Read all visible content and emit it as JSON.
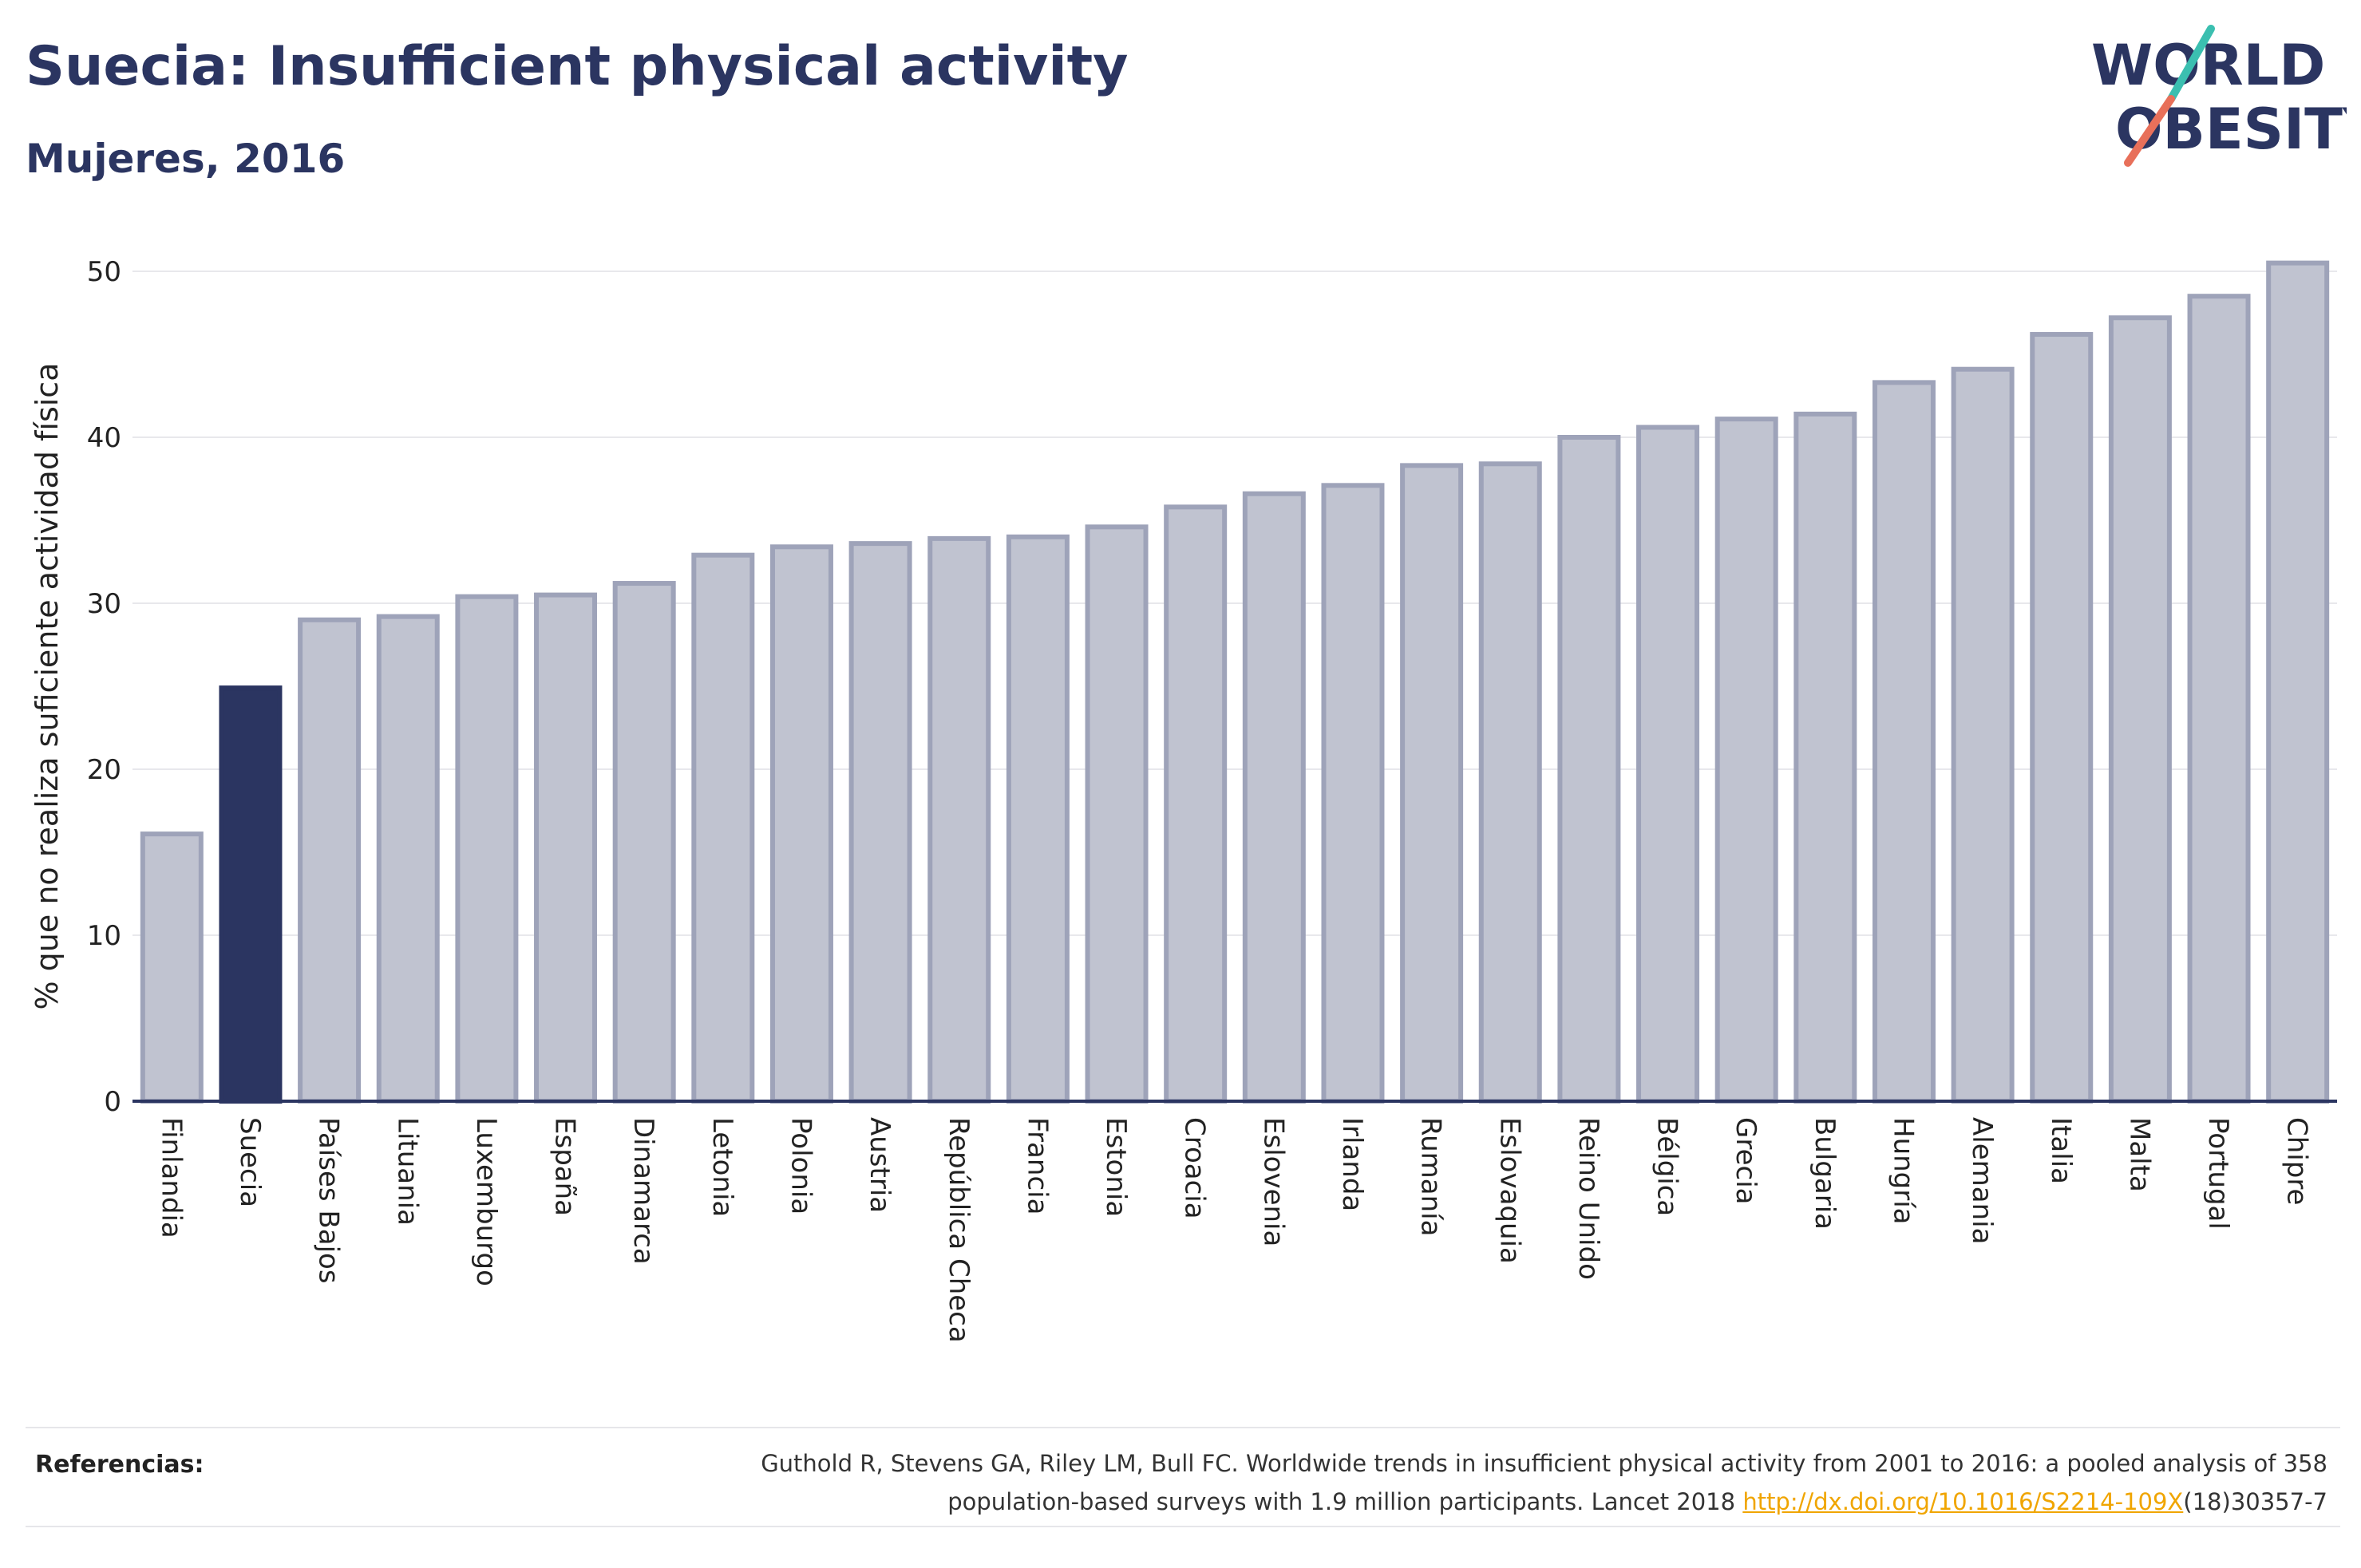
{
  "header": {
    "title": "Suecia: Insufficient physical activity",
    "subtitle": "Mujeres, 2016"
  },
  "logo": {
    "line1": "WORLD",
    "line2": "OBESITY",
    "colors": {
      "text": "#2b3561",
      "slash_top": "#3bbfb0",
      "slash_bottom": "#e8705a"
    }
  },
  "colors": {
    "bar_default": "#c0c3d0",
    "bar_stroke": "#9ea3b9",
    "bar_highlight": "#2b3561",
    "grid": "#e8e8ec",
    "axis": "#2b3561"
  },
  "chart_data": {
    "type": "bar",
    "title": "Suecia: Insufficient physical activity",
    "subtitle": "Mujeres, 2016",
    "xlabel": "",
    "ylabel": "% que no realiza suficiente actividad física",
    "ylim": [
      0,
      52
    ],
    "yticks": [
      0,
      10,
      20,
      30,
      40,
      50
    ],
    "grid": true,
    "highlight": "Suecia",
    "categories": [
      "Finlandia",
      "Suecia",
      "Países Bajos",
      "Lituania",
      "Luxemburgo",
      "España",
      "Dinamarca",
      "Letonia",
      "Polonia",
      "Austria",
      "República Checa",
      "Francia",
      "Estonia",
      "Croacia",
      "Eslovenia",
      "Irlanda",
      "Rumanía",
      "Eslovaquia",
      "Reino Unido",
      "Bélgica",
      "Grecia",
      "Bulgaria",
      "Hungría",
      "Alemania",
      "Italia",
      "Malta",
      "Portugal",
      "Chipre"
    ],
    "values": [
      16.1,
      24.9,
      29.0,
      29.2,
      30.4,
      30.5,
      31.2,
      32.9,
      33.4,
      33.6,
      33.9,
      34.0,
      34.6,
      35.8,
      36.6,
      37.1,
      38.3,
      38.4,
      40.0,
      40.6,
      41.1,
      41.4,
      43.3,
      44.1,
      46.2,
      47.2,
      48.5,
      50.5
    ]
  },
  "references": {
    "label": "Referencias:",
    "text_line1": "Guthold R, Stevens GA, Riley LM, Bull FC. Worldwide trends in insufficient physical activity from 2001 to 2016: a pooled analysis of 358",
    "text_line2_before": "population-based surveys with 1.9 million participants. Lancet 2018 ",
    "link": "http://dx.doi.org/10.1016/S2214-109X",
    "text_line2_after": "(18)30357-7"
  }
}
